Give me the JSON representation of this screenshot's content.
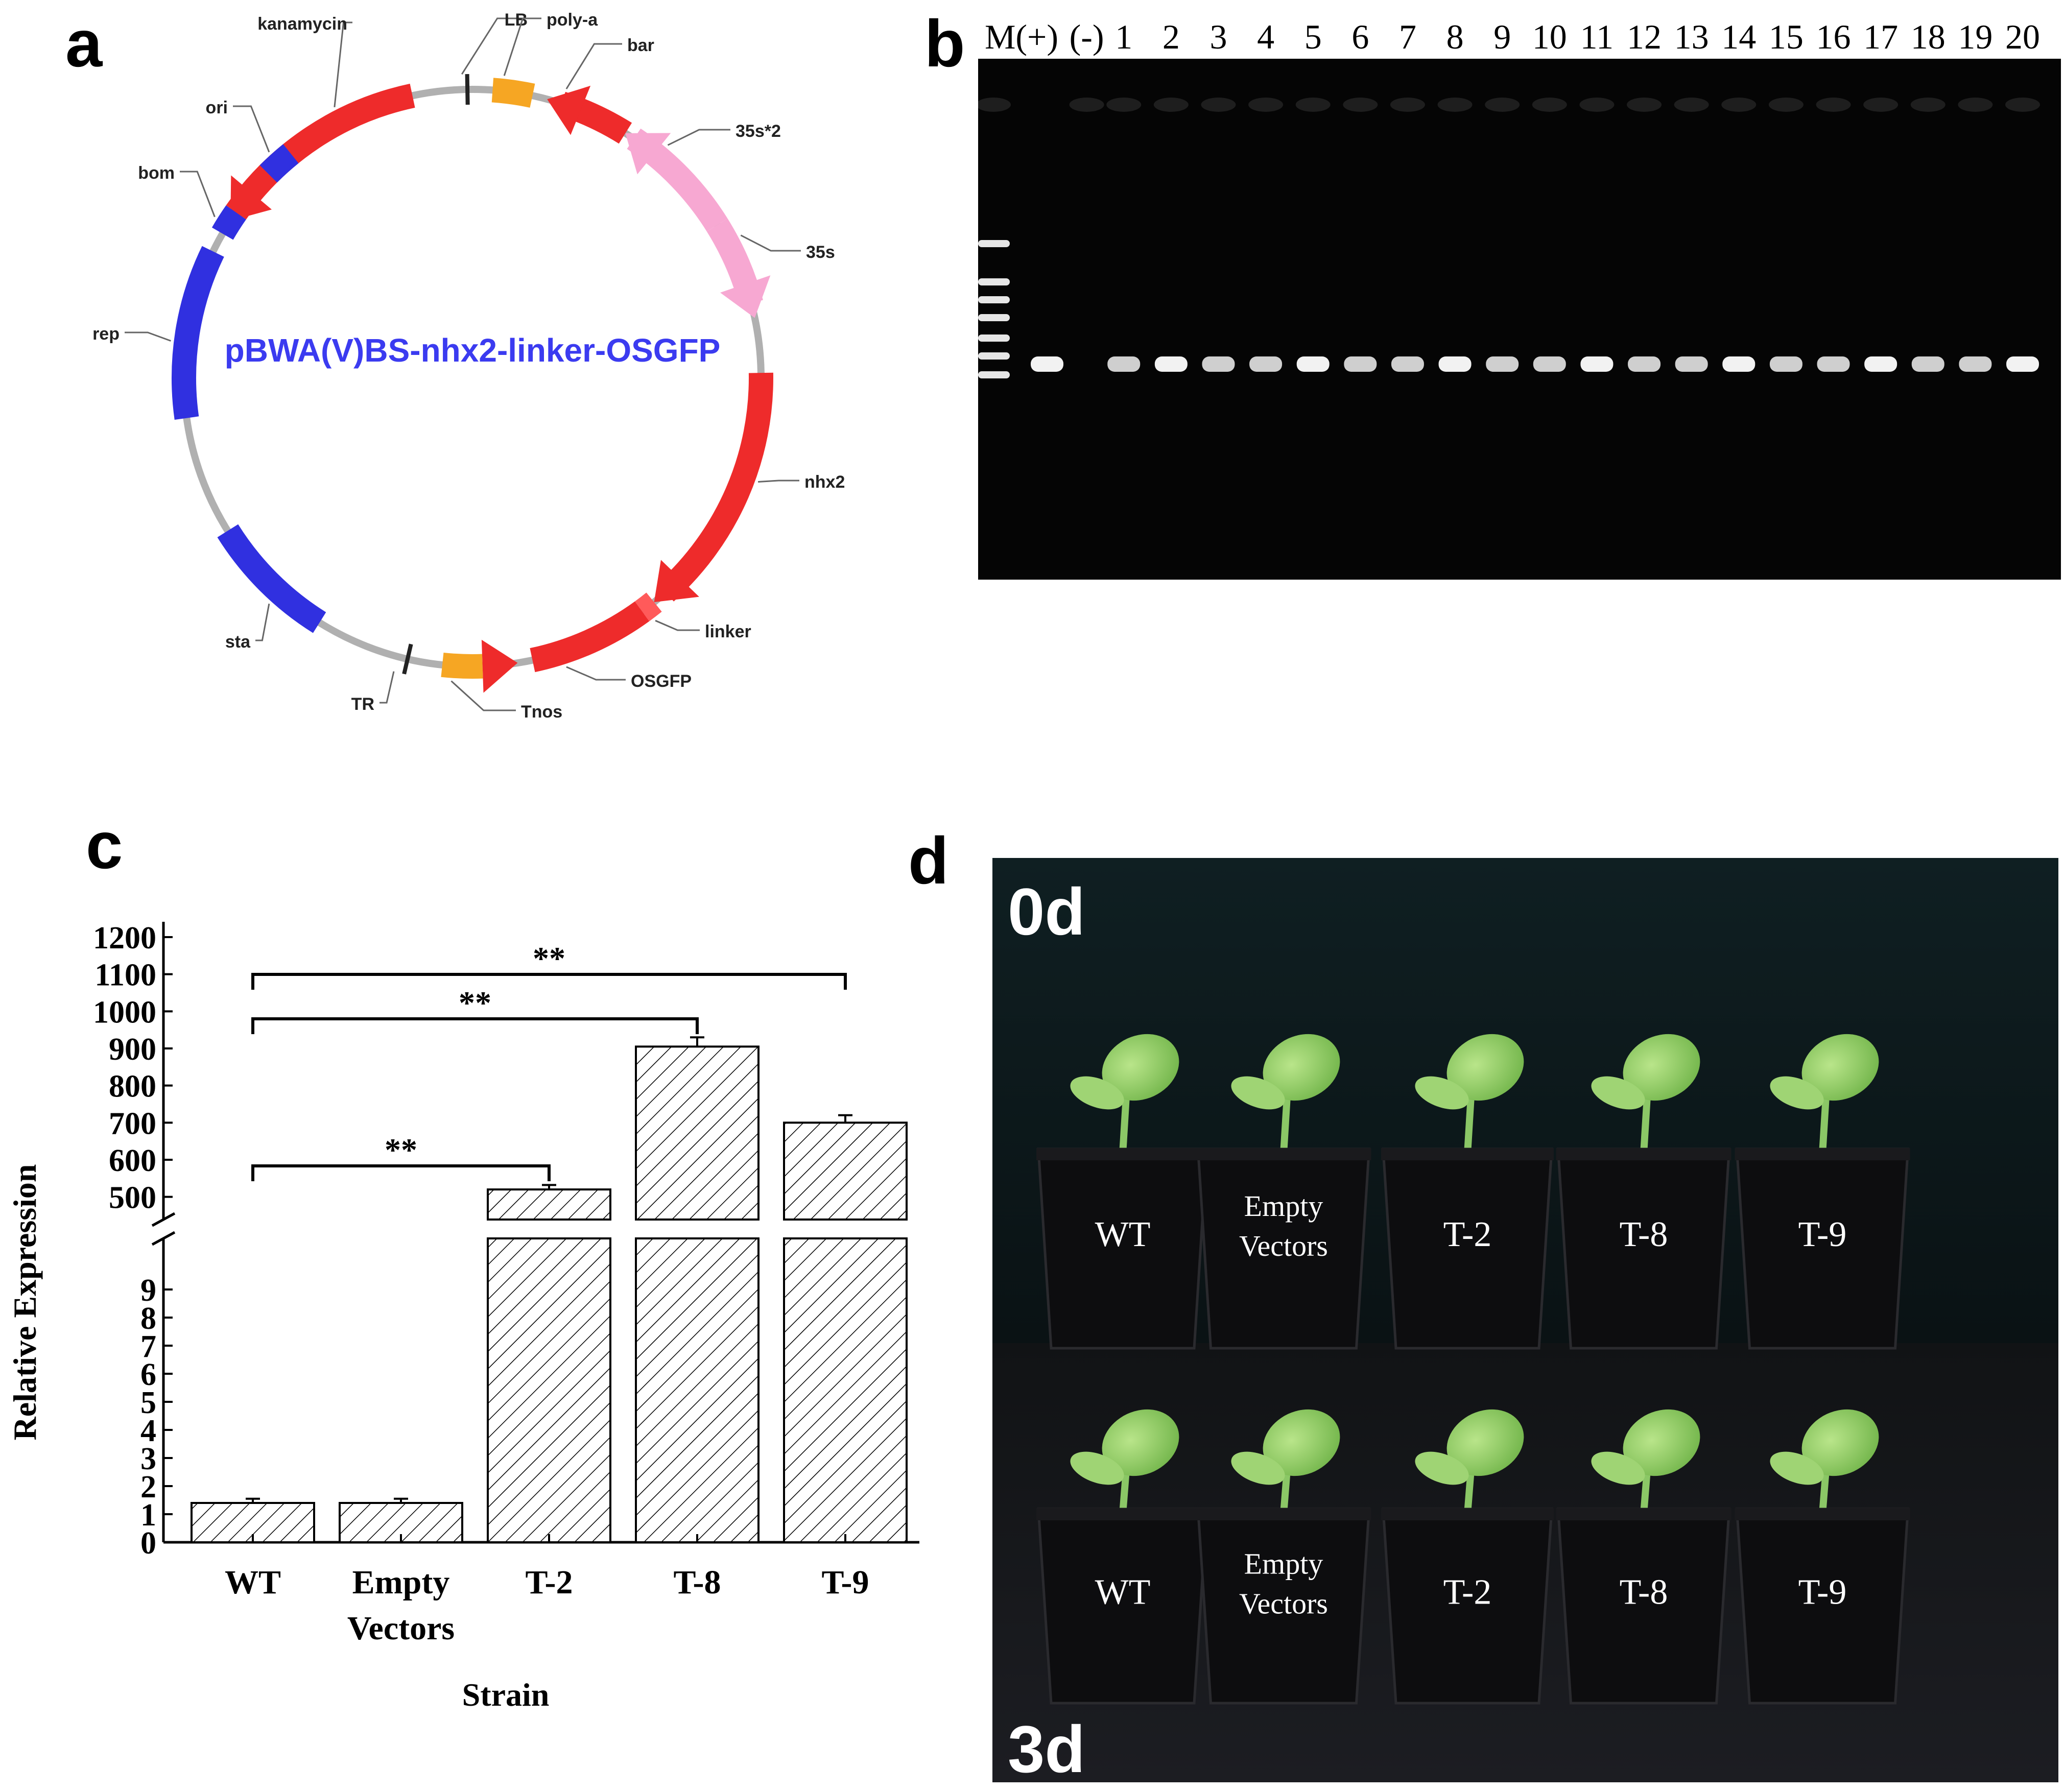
{
  "panels": {
    "a": {
      "letter": "a"
    },
    "b": {
      "letter": "b"
    },
    "c": {
      "letter": "c"
    },
    "d": {
      "letter": "d"
    }
  },
  "plasmid": {
    "name": "pBWA(V)BS-nhx2-linker-OSGFP",
    "colors": {
      "backbone": "#b0b0b0",
      "cds": "#ee2b2b",
      "promoter": "#f7a8d2",
      "terminator": "#f6a623",
      "origin": "#3030e0"
    },
    "features": [
      {
        "label": "kanamycin"
      },
      {
        "label": "LB"
      },
      {
        "label": "poly-a"
      },
      {
        "label": "bar"
      },
      {
        "label": "35s*2"
      },
      {
        "label": "35s"
      },
      {
        "label": "nhx2"
      },
      {
        "label": "linker"
      },
      {
        "label": "OSGFP"
      },
      {
        "label": "Tnos"
      },
      {
        "label": "TR"
      },
      {
        "label": "sta"
      },
      {
        "label": "rep"
      },
      {
        "label": "bom"
      },
      {
        "label": "ori"
      }
    ]
  },
  "gel": {
    "lanes": [
      "M(+)",
      "(-)",
      "1",
      "2",
      "3",
      "4",
      "5",
      "6",
      "7",
      "8",
      "9",
      "10",
      "11",
      "12",
      "13",
      "14",
      "15",
      "16",
      "17",
      "18",
      "19",
      "20"
    ],
    "background": "#050505"
  },
  "chart_data": {
    "type": "bar",
    "categories": [
      "WT",
      "Empty Vectors",
      "T-2",
      "T-8",
      "T-9"
    ],
    "categories_display": [
      [
        "WT"
      ],
      [
        "Empty",
        "Vectors"
      ],
      [
        "T-2"
      ],
      [
        "T-8"
      ],
      [
        "T-9"
      ]
    ],
    "values": [
      1.4,
      1.4,
      520,
      905,
      700
    ],
    "errors": [
      0.15,
      0.15,
      12,
      25,
      20
    ],
    "xlabel": "Strain",
    "ylabel": "Relative Expression",
    "y_ticks_lower": [
      "0",
      "1",
      "2",
      "3",
      "4",
      "5",
      "6",
      "7",
      "8",
      "9"
    ],
    "y_ticks_upper": [
      "500",
      "600",
      "700",
      "800",
      "900",
      "1000",
      "1100",
      "1200"
    ],
    "ylim_lower": [
      0,
      10
    ],
    "ylim_upper": [
      450,
      1200
    ],
    "axis_break": true,
    "fill": "diagonal hatch",
    "significance": [
      {
        "from": "WT",
        "to": "T-2",
        "label": "**"
      },
      {
        "from": "WT",
        "to": "T-8",
        "label": "**"
      },
      {
        "from": "WT",
        "to": "T-9",
        "label": "**"
      }
    ]
  },
  "photo": {
    "top_label": "0d",
    "bottom_label": "3d",
    "pots_top": [
      [
        "WT"
      ],
      [
        "Empty",
        "Vectors"
      ],
      [
        "T-2"
      ],
      [
        "T-8"
      ],
      [
        "T-9"
      ]
    ],
    "pots_bottom": [
      [
        "WT"
      ],
      [
        "Empty",
        "Vectors"
      ],
      [
        "T-2"
      ],
      [
        "T-8"
      ],
      [
        "T-9"
      ]
    ]
  }
}
